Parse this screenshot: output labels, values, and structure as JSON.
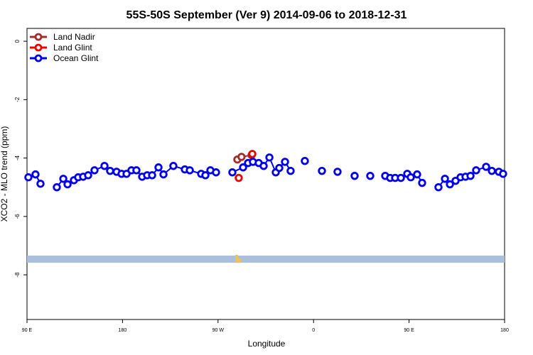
{
  "chart_data": {
    "type": "line",
    "title": "55S-50S September (Ver 9)   2014-09-06 to 2018-12-31",
    "x_label": "Longitude",
    "y_label": "XCO2 - MLO trend (ppm)",
    "xlim": [
      90,
      540
    ],
    "xticks": [
      {
        "value": 90,
        "label": "90 E"
      },
      {
        "value": 180,
        "label": "180"
      },
      {
        "value": 270,
        "label": "90 W"
      },
      {
        "value": 360,
        "label": "0"
      },
      {
        "value": 450,
        "label": "90 E"
      },
      {
        "value": 540,
        "label": "180"
      }
    ],
    "ylim": [
      -9.53,
      0.44
    ],
    "yticks": [
      0,
      -2,
      -4,
      -6,
      -8
    ],
    "legend": "top-left",
    "series": [
      {
        "name": "Land Nadir",
        "color": "#a52a2a",
        "x": [
          288.2,
          292.1,
          301.6
        ],
        "values": [
          -4.05,
          -3.96,
          -3.9
        ]
      },
      {
        "name": "Land Glint",
        "color": "#ee0000",
        "x": [
          289.5,
          302.3
        ],
        "values": [
          -4.68,
          -3.86
        ]
      },
      {
        "name": "Ocean Glint",
        "color": "#0000ee",
        "x": [
          91.3,
          98,
          102.7,
          118.1,
          124.2,
          128.2,
          134.2,
          138.2,
          142.9,
          147.6,
          153.6,
          163,
          168.3,
          174.4,
          179.1,
          183.8,
          188.4,
          193.1,
          198.5,
          203.2,
          207.9,
          213.9,
          218.6,
          227.9,
          238.7,
          243.4,
          254.1,
          258.1,
          262.8,
          268.1,
          283.5,
          293.6,
          298.3,
          302.9,
          308.3,
          313,
          318.4,
          324.4,
          327.7,
          333.1,
          338.4,
          351.8,
          367.9,
          382.6,
          398.7,
          413.4,
          427.5,
          432.2,
          436.9,
          442.3,
          448.3,
          451.6,
          457.6,
          462.3,
          477.7,
          483.8,
          488.5,
          493.8,
          498.5,
          503.2,
          507.9,
          513.2,
          522.6,
          528,
          534.6,
          538.6
        ],
        "values": [
          -4.66,
          -4.56,
          -4.88,
          -5.0,
          -4.71,
          -4.9,
          -4.76,
          -4.66,
          -4.64,
          -4.59,
          -4.42,
          -4.27,
          -4.44,
          -4.47,
          -4.54,
          -4.54,
          -4.42,
          -4.42,
          -4.64,
          -4.59,
          -4.59,
          -4.32,
          -4.56,
          -4.27,
          -4.39,
          -4.42,
          -4.54,
          -4.59,
          -4.42,
          -4.49,
          -4.49,
          -4.32,
          -4.17,
          -4.13,
          -4.17,
          -4.27,
          -3.98,
          -4.49,
          -4.34,
          -4.13,
          -4.44,
          -4.1,
          -4.44,
          -4.47,
          -4.61,
          -4.61,
          -4.61,
          -4.68,
          -4.68,
          -4.68,
          -4.54,
          -4.66,
          -4.56,
          -4.85,
          -5.0,
          -4.71,
          -4.9,
          -4.78,
          -4.66,
          -4.64,
          -4.61,
          -4.42,
          -4.3,
          -4.44,
          -4.47,
          -4.54
        ]
      }
    ]
  }
}
